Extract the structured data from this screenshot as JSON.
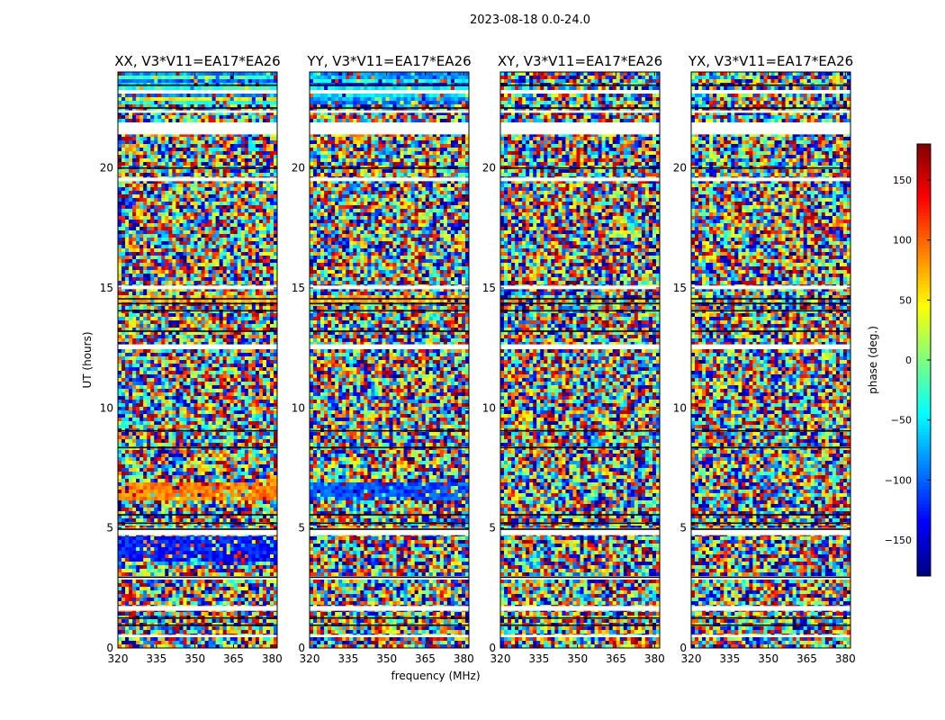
{
  "chart_data": {
    "type": "heatmap",
    "suptitle": "2023-08-18 0.0-24.0",
    "xlabel": "frequency (MHz)",
    "ylabel": "UT (hours)",
    "xlim": [
      320,
      382
    ],
    "ylim": [
      0,
      24
    ],
    "xticks": [
      320,
      335,
      350,
      365,
      380
    ],
    "yticks": [
      0,
      5,
      10,
      15,
      20
    ],
    "panels": [
      {
        "title": "XX, V3*V11=EA17*EA26"
      },
      {
        "title": "YY, V3*V11=EA17*EA26"
      },
      {
        "title": "XY, V3*V11=EA17*EA26"
      },
      {
        "title": "YX, V3*V11=EA17*EA26"
      }
    ],
    "colorbar": {
      "label": "phase (deg.)",
      "range": [
        -180,
        180
      ],
      "ticks": [
        150,
        100,
        50,
        0,
        -50,
        -100,
        -150
      ],
      "tick_labels": [
        "150",
        "100",
        "50",
        "0",
        "−50",
        "−100",
        "−150"
      ],
      "colormap": "jet"
    }
  }
}
